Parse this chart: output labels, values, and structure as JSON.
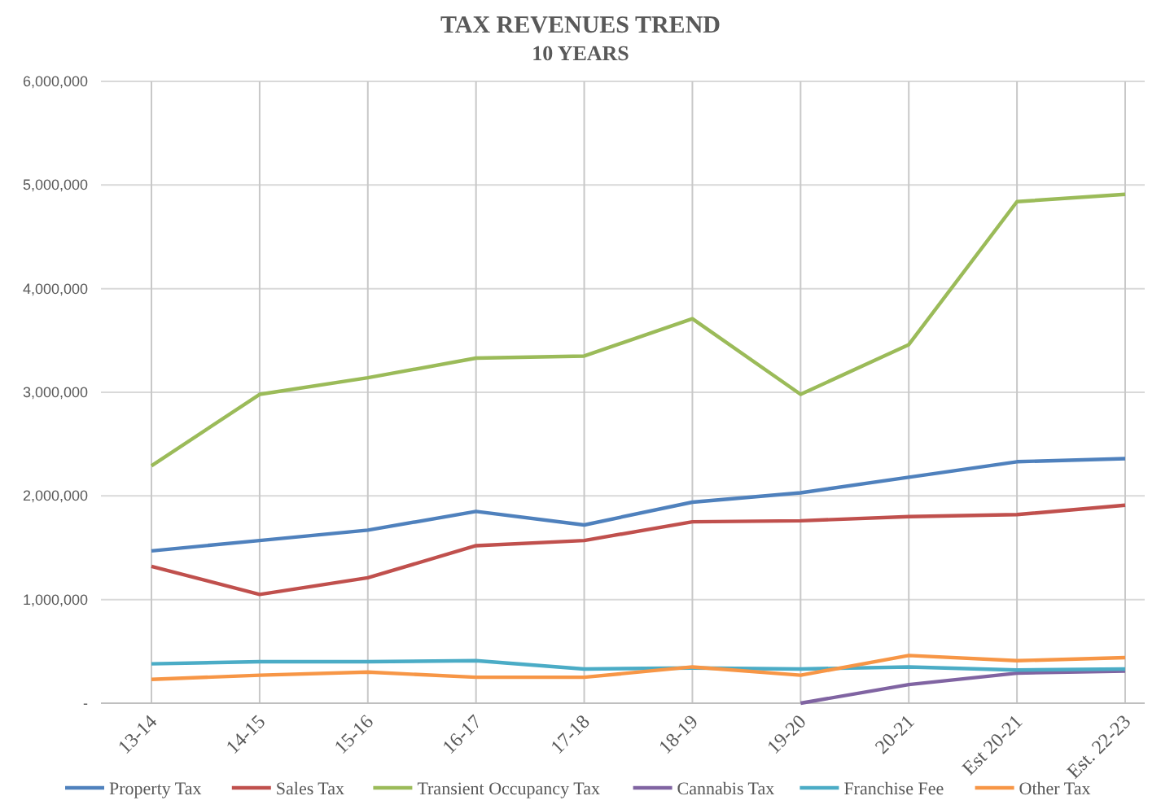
{
  "chart_data": {
    "type": "line",
    "title": "TAX REVENUES TREND",
    "subtitle": "10 YEARS",
    "categories": [
      "13-14",
      "14-15",
      "15-16",
      "16-17",
      "17-18",
      "18-19",
      "19-20",
      "20-21",
      "Est 20-21",
      "Est. 22-23"
    ],
    "series": [
      {
        "name": "Property Tax",
        "color": "#4f81bd",
        "values": [
          1470000,
          1570000,
          1670000,
          1850000,
          1720000,
          1940000,
          2030000,
          2180000,
          2330000,
          2360000
        ]
      },
      {
        "name": "Sales Tax",
        "color": "#c0504d",
        "values": [
          1320000,
          1050000,
          1210000,
          1520000,
          1570000,
          1750000,
          1760000,
          1800000,
          1820000,
          1910000
        ]
      },
      {
        "name": "Transient Occupancy Tax",
        "color": "#9bbb59",
        "values": [
          2290000,
          2980000,
          3140000,
          3330000,
          3350000,
          3710000,
          2980000,
          3460000,
          4840000,
          4910000
        ]
      },
      {
        "name": "Cannabis Tax",
        "color": "#8064a2",
        "values": [
          null,
          null,
          null,
          null,
          null,
          null,
          0,
          180000,
          290000,
          310000
        ]
      },
      {
        "name": "Franchise Fee",
        "color": "#4bacc6",
        "values": [
          380000,
          400000,
          400000,
          410000,
          330000,
          340000,
          330000,
          350000,
          320000,
          330000
        ]
      },
      {
        "name": "Other Tax",
        "color": "#f79646",
        "values": [
          230000,
          270000,
          300000,
          250000,
          250000,
          350000,
          270000,
          460000,
          410000,
          440000
        ]
      }
    ],
    "ylim": [
      0,
      6000000
    ],
    "yticks": [
      {
        "value": 0,
        "label": "-"
      },
      {
        "value": 1000000,
        "label": "1,000,000"
      },
      {
        "value": 2000000,
        "label": "2,000,000"
      },
      {
        "value": 3000000,
        "label": "3,000,000"
      },
      {
        "value": 4000000,
        "label": "4,000,000"
      },
      {
        "value": 5000000,
        "label": "5,000,000"
      },
      {
        "value": 6000000,
        "label": "6,000,000"
      }
    ],
    "grid": true,
    "legend": "bottom",
    "marker": "none",
    "line_style": "solid"
  }
}
